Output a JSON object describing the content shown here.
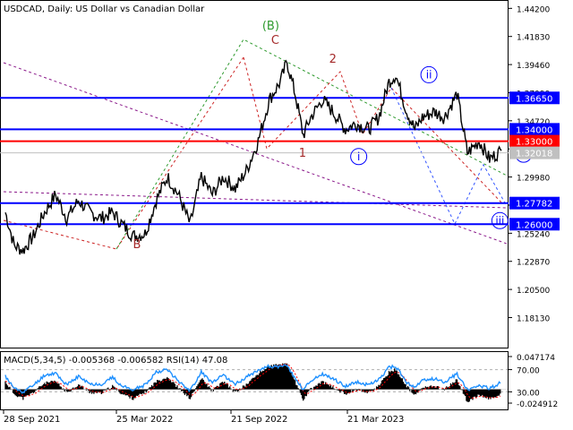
{
  "chart_data": {
    "type": "line",
    "title": "USDCAD, Daily:  US Dollar vs Canadian Dollar",
    "price_axis": {
      "ylim": [
        1.159,
        1.443
      ],
      "ticks": [
        "1.44200",
        "1.41830",
        "1.39460",
        "1.37090",
        "1.34720",
        "1.32350",
        "1.29980",
        "1.27610",
        "1.25240",
        "1.22870",
        "1.20500",
        "1.18130"
      ]
    },
    "date_axis": {
      "labels": [
        "28 Sep 2021",
        "25 Mar 2022",
        "21 Sep 2022",
        "21 Mar 2023"
      ],
      "range": [
        "2021-09-28",
        "2023-07-31"
      ]
    },
    "series": [
      {
        "type": "bar-ohlc",
        "x": [
          "2021-09-28",
          "2021-10-10",
          "2021-10-22",
          "2021-11-05",
          "2021-11-20",
          "2021-12-05",
          "2021-12-20",
          "2022-01-05",
          "2022-01-20",
          "2022-02-05",
          "2022-02-20",
          "2022-03-05",
          "2022-03-20",
          "2022-04-05",
          "2022-04-20",
          "2022-05-05",
          "2022-05-20",
          "2022-06-05",
          "2022-06-20",
          "2022-07-05",
          "2022-07-20",
          "2022-08-05",
          "2022-08-20",
          "2022-09-05",
          "2022-09-20",
          "2022-10-05",
          "2022-10-14",
          "2022-10-25",
          "2022-11-05",
          "2022-11-15",
          "2022-12-01",
          "2022-12-15",
          "2023-01-01",
          "2023-01-15",
          "2023-02-01",
          "2023-02-15",
          "2023-03-01",
          "2023-03-10",
          "2023-03-25",
          "2023-04-05",
          "2023-04-15",
          "2023-05-01",
          "2023-05-15",
          "2023-06-01",
          "2023-06-15",
          "2023-07-01",
          "2023-07-15",
          "2023-07-31"
        ],
        "values": [
          1.27,
          1.242,
          1.238,
          1.25,
          1.27,
          1.285,
          1.265,
          1.28,
          1.27,
          1.265,
          1.27,
          1.26,
          1.25,
          1.252,
          1.28,
          1.3,
          1.285,
          1.26,
          1.3,
          1.285,
          1.3,
          1.29,
          1.305,
          1.33,
          1.365,
          1.38,
          1.397,
          1.37,
          1.335,
          1.35,
          1.365,
          1.355,
          1.34,
          1.345,
          1.34,
          1.35,
          1.38,
          1.386,
          1.355,
          1.34,
          1.35,
          1.355,
          1.35,
          1.37,
          1.32,
          1.33,
          1.315,
          1.322
        ]
      },
      {
        "name": "MACD(5,34,5)",
        "values": [
          0.01,
          -0.006,
          -0.012,
          -0.004,
          0.008,
          0.01,
          -0.004,
          0.006,
          -0.004,
          -0.005,
          0.004,
          -0.006,
          -0.012,
          -0.004,
          0.01,
          0.016,
          0.002,
          -0.012,
          0.014,
          -0.002,
          0.01,
          -0.004,
          0.006,
          0.02,
          0.03,
          0.032,
          0.034,
          0.01,
          -0.014,
          0.0,
          0.01,
          0.002,
          -0.006,
          0.0,
          -0.004,
          0.004,
          0.022,
          0.026,
          0.004,
          -0.008,
          0.002,
          0.004,
          0.0,
          0.012,
          -0.016,
          -0.008,
          -0.012,
          -0.006582
        ]
      },
      {
        "name": "RSI(14)",
        "values": [
          58,
          36,
          30,
          42,
          60,
          64,
          42,
          58,
          44,
          44,
          56,
          40,
          34,
          42,
          66,
          70,
          50,
          32,
          66,
          46,
          60,
          44,
          56,
          70,
          76,
          74,
          78,
          54,
          34,
          50,
          62,
          54,
          40,
          48,
          42,
          52,
          74,
          76,
          46,
          38,
          50,
          54,
          48,
          62,
          34,
          42,
          36,
          47.08
        ]
      }
    ],
    "levels": [
      {
        "value": 1.3665,
        "label": "1.36650",
        "color": "#0000ff"
      },
      {
        "value": 1.34,
        "label": "1.34000",
        "color": "#0000ff"
      },
      {
        "value": 1.33,
        "label": "1.33000",
        "color": "#ff0000"
      },
      {
        "value": 1.27782,
        "label": "1.27782",
        "color": "#0000ff"
      },
      {
        "value": 1.26,
        "label": "1.26000",
        "color": "#0000ff"
      }
    ],
    "current_price": {
      "value": 1.32018,
      "label": "1.32018",
      "color": "#c0c0c0"
    },
    "wave_labels": [
      {
        "text": "(B)",
        "color": "#2e9a2e",
        "x": "2022-09-22",
        "y": 1.424
      },
      {
        "text": "C",
        "color": "#a52a2a",
        "x": "2022-09-28",
        "y": 1.412
      },
      {
        "text": "2",
        "color": "#a52a2a",
        "x": "2022-12-15",
        "y": 1.396
      },
      {
        "text": "1",
        "color": "#a52a2a",
        "x": "2022-11-04",
        "y": 1.317
      },
      {
        "text": "B",
        "color": "#a52a2a",
        "x": "2022-03-25",
        "y": 1.24
      },
      {
        "text": "ii",
        "color": "#0000ff",
        "circled": true,
        "x": "2023-04-24",
        "y": 1.383
      },
      {
        "text": "i",
        "color": "#0000ff",
        "circled": true,
        "x": "2023-01-19",
        "y": 1.314
      },
      {
        "text": "iii",
        "color": "#0000ff",
        "circled": true,
        "x": "2023-07-29",
        "y": 1.26
      },
      {
        "text": "iv",
        "color": "#0000ff",
        "circled": true,
        "x": "2023-08-30",
        "y": 1.316
      }
    ],
    "indicator": {
      "label": "MACD(5,34,5) -0.005368 -0.006582 RSI(14) 47.08",
      "ticks": [
        "0.047174",
        "70.00",
        "30.00",
        "-0.024912"
      ],
      "macd_range": [
        -0.024912,
        0.047174
      ],
      "rsi_range": [
        0,
        100
      ]
    },
    "grid": false,
    "legend": "none"
  }
}
